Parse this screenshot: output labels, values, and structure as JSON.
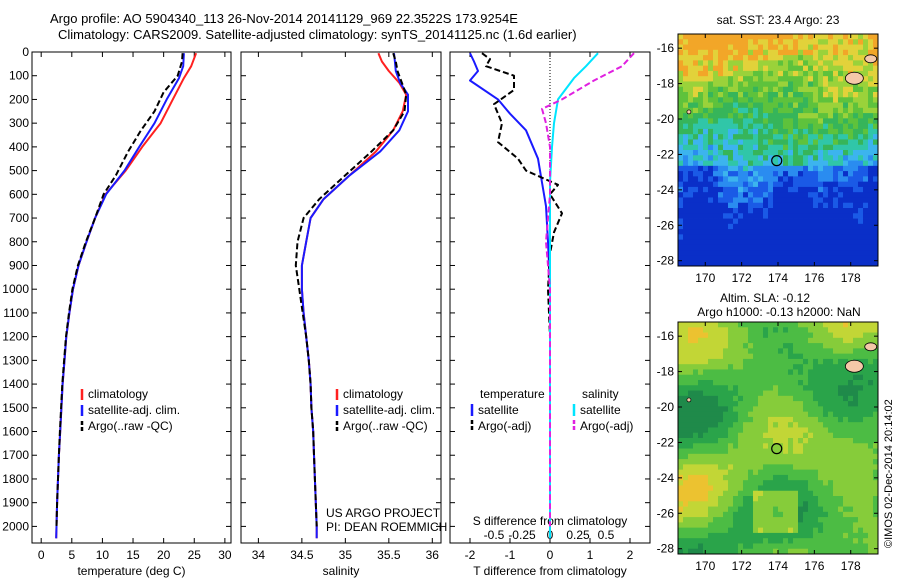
{
  "header": {
    "title_line1": "Argo profile: AO 5904340_113 26-Nov-2014 20141129_969 22.3522S 173.9254E",
    "title_line2": "Climatology: CARS2009. Satellite-adjusted climatology: synTS_20141125.nc (1.6d earlier)"
  },
  "colors": {
    "climatology": "#ff2020",
    "satellite": "#1a1aff",
    "argo": "#000000",
    "sal_satellite": "#00e5ff",
    "sal_argo": "#e020e0",
    "land": "#f5c8a8"
  },
  "credits": {
    "project": "US ARGO PROJECT",
    "pi": "PI: DEAN ROEMMICH",
    "side": "©IMOS 02-Dec-2014 20:14:02"
  },
  "chart_data": [
    {
      "type": "line",
      "name": "temperature-profile",
      "xlabel": "temperature (deg C)",
      "xlim": [
        -1.5,
        31
      ],
      "xticks": [
        0,
        5,
        10,
        15,
        20,
        25,
        30
      ],
      "ylim": [
        2070,
        0
      ],
      "yticks": [
        0,
        100,
        200,
        300,
        400,
        500,
        600,
        700,
        800,
        900,
        1000,
        1100,
        1200,
        1300,
        1400,
        1500,
        1600,
        1700,
        1800,
        1900,
        2000
      ],
      "legend": [
        "climatology",
        "satellite-adj. clim.",
        "Argo(..raw -QC)"
      ],
      "legend_position": "lower-center",
      "series": [
        {
          "name": "climatology",
          "style": "red",
          "values": [
            [
              25.3,
              5
            ],
            [
              24.5,
              60
            ],
            [
              23.3,
              110
            ],
            [
              21.5,
              200
            ],
            [
              19.5,
              300
            ],
            [
              16.5,
              400
            ],
            [
              13.8,
              500
            ],
            [
              10.5,
              600
            ],
            [
              8.8,
              700
            ],
            [
              7.4,
              800
            ],
            [
              6.1,
              900
            ],
            [
              5.2,
              1000
            ],
            [
              4.6,
              1100
            ],
            [
              4.1,
              1200
            ],
            [
              3.8,
              1300
            ],
            [
              3.5,
              1400
            ],
            [
              3.3,
              1500
            ],
            [
              3.1,
              1600
            ],
            [
              2.9,
              1700
            ],
            [
              2.75,
              1800
            ],
            [
              2.6,
              1900
            ],
            [
              2.5,
              2000
            ],
            [
              2.45,
              2050
            ]
          ]
        },
        {
          "name": "satellite-adj. clim.",
          "style": "blue",
          "values": [
            [
              23.3,
              5
            ],
            [
              23.2,
              60
            ],
            [
              22.5,
              110
            ],
            [
              20.5,
              200
            ],
            [
              18.5,
              300
            ],
            [
              16.0,
              400
            ],
            [
              13.6,
              500
            ],
            [
              10.6,
              600
            ],
            [
              8.8,
              700
            ],
            [
              7.4,
              800
            ],
            [
              6.1,
              900
            ],
            [
              5.2,
              1000
            ],
            [
              4.6,
              1100
            ],
            [
              4.1,
              1200
            ],
            [
              3.8,
              1300
            ],
            [
              3.5,
              1400
            ],
            [
              3.3,
              1500
            ],
            [
              3.1,
              1600
            ],
            [
              2.9,
              1700
            ],
            [
              2.75,
              1800
            ],
            [
              2.6,
              1900
            ],
            [
              2.5,
              2000
            ],
            [
              2.45,
              2050
            ]
          ]
        },
        {
          "name": "Argo(..raw -QC)",
          "style": "black-dash",
          "values": [
            [
              23.1,
              5
            ],
            [
              23.0,
              40
            ],
            [
              22.3,
              100
            ],
            [
              20.0,
              170
            ],
            [
              18.5,
              250
            ],
            [
              16.3,
              330
            ],
            [
              14.2,
              420
            ],
            [
              12.2,
              520
            ],
            [
              10.2,
              600
            ],
            [
              8.8,
              700
            ],
            [
              7.3,
              800
            ],
            [
              6.0,
              900
            ],
            [
              5.1,
              1000
            ],
            [
              4.55,
              1100
            ],
            [
              4.05,
              1200
            ],
            [
              3.75,
              1300
            ],
            [
              3.45,
              1400
            ],
            [
              3.25,
              1500
            ],
            [
              3.05,
              1600
            ],
            [
              2.9,
              1700
            ],
            [
              2.75,
              1800
            ],
            [
              2.6,
              1900
            ],
            [
              2.5,
              2000
            ]
          ]
        }
      ]
    },
    {
      "type": "line",
      "name": "salinity-profile",
      "xlabel": "salinity",
      "xlim": [
        33.8,
        36.1
      ],
      "xticks": [
        34,
        34.5,
        35,
        35.5,
        36
      ],
      "ylim": [
        2070,
        0
      ],
      "legend": [
        "climatology",
        "satellite-adj. clim.",
        "Argo(..raw -QC)"
      ],
      "legend_position": "lower-center",
      "series": [
        {
          "name": "climatology",
          "style": "red",
          "values": [
            [
              35.38,
              5
            ],
            [
              35.42,
              40
            ],
            [
              35.5,
              80
            ],
            [
              35.62,
              130
            ],
            [
              35.7,
              180
            ],
            [
              35.66,
              250
            ],
            [
              35.55,
              330
            ],
            [
              35.35,
              420
            ],
            [
              35.05,
              520
            ],
            [
              34.75,
              620
            ],
            [
              34.6,
              700
            ],
            [
              34.55,
              800
            ],
            [
              34.5,
              900
            ],
            [
              34.5,
              1000
            ],
            [
              34.52,
              1100
            ],
            [
              34.55,
              1200
            ],
            [
              34.58,
              1300
            ],
            [
              34.6,
              1400
            ],
            [
              34.61,
              1500
            ],
            [
              34.63,
              1600
            ],
            [
              34.64,
              1700
            ],
            [
              34.65,
              1800
            ],
            [
              34.66,
              1900
            ],
            [
              34.67,
              2000
            ],
            [
              34.67,
              2050
            ]
          ]
        },
        {
          "name": "satellite-adj. clim.",
          "style": "blue",
          "values": [
            [
              35.56,
              5
            ],
            [
              35.57,
              40
            ],
            [
              35.58,
              80
            ],
            [
              35.63,
              130
            ],
            [
              35.72,
              180
            ],
            [
              35.72,
              250
            ],
            [
              35.62,
              330
            ],
            [
              35.4,
              420
            ],
            [
              35.05,
              520
            ],
            [
              34.75,
              620
            ],
            [
              34.6,
              700
            ],
            [
              34.55,
              800
            ],
            [
              34.5,
              900
            ],
            [
              34.5,
              1000
            ],
            [
              34.52,
              1100
            ],
            [
              34.55,
              1200
            ],
            [
              34.58,
              1300
            ],
            [
              34.6,
              1400
            ],
            [
              34.61,
              1500
            ],
            [
              34.63,
              1600
            ],
            [
              34.64,
              1700
            ],
            [
              34.65,
              1800
            ],
            [
              34.66,
              1900
            ],
            [
              34.67,
              2000
            ],
            [
              34.67,
              2050
            ]
          ]
        },
        {
          "name": "Argo(..raw -QC)",
          "style": "black-dash",
          "values": [
            [
              35.55,
              5
            ],
            [
              35.58,
              40
            ],
            [
              35.6,
              80
            ],
            [
              35.65,
              130
            ],
            [
              35.7,
              180
            ],
            [
              35.68,
              250
            ],
            [
              35.55,
              330
            ],
            [
              35.3,
              420
            ],
            [
              35.0,
              520
            ],
            [
              34.7,
              620
            ],
            [
              34.52,
              700
            ],
            [
              34.45,
              800
            ],
            [
              34.43,
              900
            ],
            [
              34.47,
              1000
            ],
            [
              34.51,
              1100
            ],
            [
              34.55,
              1200
            ],
            [
              34.58,
              1300
            ],
            [
              34.6,
              1400
            ],
            [
              34.61,
              1500
            ],
            [
              34.63,
              1600
            ],
            [
              34.64,
              1700
            ],
            [
              34.65,
              1800
            ],
            [
              34.66,
              1900
            ],
            [
              34.67,
              2000
            ]
          ]
        }
      ]
    },
    {
      "type": "line",
      "name": "difference-profile",
      "xlabel": "T difference from climatology",
      "xlabel_top": "S difference from climatology",
      "xlim": [
        -2.5,
        2.5
      ],
      "xticks": [
        -2,
        -1,
        0,
        1,
        2
      ],
      "sticks": [
        "-0.5",
        "-0.25",
        "0",
        "0.25",
        "0.5"
      ],
      "ylim": [
        2070,
        0
      ],
      "legend_titles": [
        "temperature",
        "salinity"
      ],
      "legend": [
        "satellite",
        "Argo(-adj)",
        "satellite",
        "Argo(-adj)"
      ],
      "legend_position": "lower-center",
      "series": [
        {
          "name": "satellite",
          "group": "temperature",
          "style": "blue",
          "values": [
            [
              -2.0,
              5
            ],
            [
              -1.9,
              40
            ],
            [
              -1.8,
              80
            ],
            [
              -2.0,
              120
            ],
            [
              -1.3,
              200
            ],
            [
              -1.0,
              260
            ],
            [
              -0.6,
              330
            ],
            [
              -0.3,
              450
            ],
            [
              -0.2,
              550
            ],
            [
              -0.1,
              650
            ],
            [
              -0.05,
              800
            ],
            [
              0,
              1000
            ],
            [
              0,
              1500
            ],
            [
              0,
              2050
            ]
          ]
        },
        {
          "name": "Argo(-adj)",
          "group": "temperature",
          "style": "black-dash",
          "values": [
            [
              -1.7,
              5
            ],
            [
              -1.5,
              30
            ],
            [
              -1.6,
              60
            ],
            [
              -0.9,
              100
            ],
            [
              -0.9,
              160
            ],
            [
              -1.4,
              220
            ],
            [
              -1.2,
              300
            ],
            [
              -1.3,
              380
            ],
            [
              -0.8,
              450
            ],
            [
              -0.6,
              500
            ],
            [
              0.2,
              560
            ],
            [
              0.0,
              600
            ],
            [
              0.3,
              680
            ],
            [
              0.1,
              760
            ],
            [
              0.0,
              850
            ],
            [
              -0.05,
              1000
            ],
            [
              0,
              1200
            ],
            [
              0,
              1500
            ],
            [
              0,
              2000
            ]
          ]
        },
        {
          "name": "satellite",
          "group": "salinity",
          "style": "cyan",
          "values": [
            [
              1.2,
              5
            ],
            [
              0.9,
              60
            ],
            [
              0.6,
              110
            ],
            [
              0.2,
              200
            ],
            [
              0.1,
              300
            ],
            [
              0.05,
              400
            ],
            [
              0,
              550
            ],
            [
              0,
              700
            ],
            [
              0,
              1000
            ],
            [
              0,
              2050
            ]
          ]
        },
        {
          "name": "Argo(-adj)",
          "group": "salinity",
          "style": "magenta-dash",
          "values": [
            [
              2.1,
              5
            ],
            [
              1.8,
              60
            ],
            [
              1.1,
              120
            ],
            [
              0.3,
              200
            ],
            [
              -0.2,
              240
            ],
            [
              -0.1,
              300
            ],
            [
              0,
              400
            ],
            [
              0,
              600
            ],
            [
              -0.1,
              800
            ],
            [
              0,
              1000
            ],
            [
              0,
              2000
            ]
          ]
        }
      ]
    },
    {
      "type": "heatmap",
      "name": "sst-map",
      "title": "sat. SST: 23.4  Argo: 23",
      "xticks": [
        "170",
        "172",
        "174",
        "176",
        "178"
      ],
      "yticks": [
        "-16",
        "-18",
        "-20",
        "-22",
        "-24",
        "-26",
        "-28"
      ],
      "xlim": [
        168.5,
        179.5
      ],
      "ylim": [
        -28.3,
        -15.2
      ],
      "marker": [
        173.93,
        -22.35
      ]
    },
    {
      "type": "heatmap",
      "name": "sla-map",
      "title": "Altim. SLA: -0.12",
      "subtitle": "Argo h1000: -0.13 h2000: NaN",
      "xticks": [
        "170",
        "172",
        "174",
        "176",
        "178"
      ],
      "yticks": [
        "-16",
        "-18",
        "-20",
        "-22",
        "-24",
        "-26",
        "-28"
      ],
      "xlim": [
        168.5,
        179.5
      ],
      "ylim": [
        -28.3,
        -15.2
      ],
      "marker": [
        173.93,
        -22.35
      ]
    }
  ]
}
